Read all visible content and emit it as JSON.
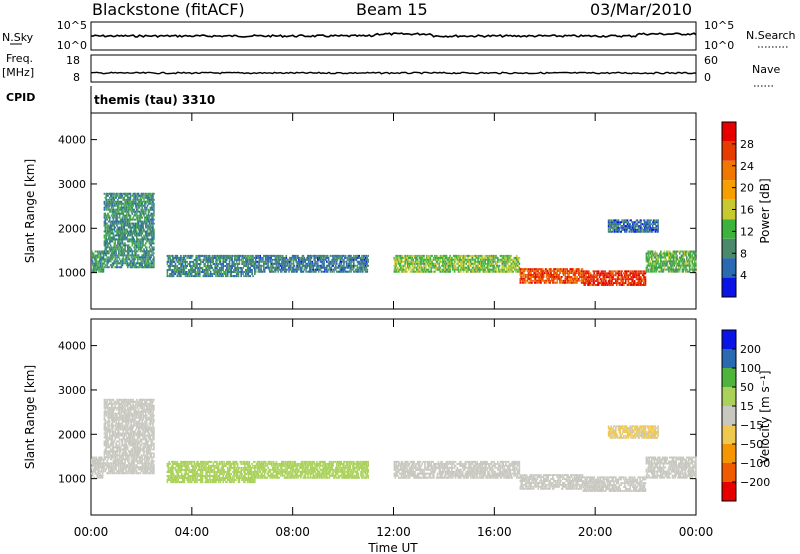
{
  "header": {
    "station": "Blackstone (fitACF)",
    "beam": "Beam 15",
    "date": "03/Mar/2010"
  },
  "strips": {
    "nsky_label": "N.Sky",
    "nsky_ticks": [
      "10^5",
      "10^0"
    ],
    "nsearch_label": "N.Search",
    "nsearch_ticks": [
      "10^5",
      "10^0"
    ],
    "freq_label": "Freq.",
    "freq_unit": "[MHz]",
    "freq_ticks": [
      "18",
      "8"
    ],
    "nave_label": "Nave",
    "nave_ticks": [
      "60",
      "0"
    ],
    "cpid_label": "CPID",
    "cpid_text": "themis (tau) 3310"
  },
  "x_axis": {
    "tick_labels": [
      "00:00",
      "04:00",
      "08:00",
      "12:00",
      "16:00",
      "20:00",
      "00:00"
    ],
    "title": "Time UT"
  },
  "colors": {
    "power": [
      "#0a14e6",
      "#2a6ab0",
      "#4a8a6a",
      "#3cb43c",
      "#c8c832",
      "#f5a000",
      "#f07800",
      "#e63c00",
      "#e60000"
    ],
    "velocity": [
      "#e60000",
      "#f05a00",
      "#f59600",
      "#f0c850",
      "#c8c8c0",
      "#aad25a",
      "#50b43c",
      "#2a6ab0",
      "#0a14e6"
    ],
    "trace": "#000000"
  },
  "chart_data": [
    {
      "type": "heatmap",
      "panel": "power",
      "ylabel": "Slant Range [km]",
      "y_ticks": [
        "4000",
        "3000",
        "2000",
        "1000"
      ],
      "ylim": [
        180,
        4600
      ],
      "xlim_hours": [
        0,
        24
      ],
      "colorbar": {
        "label": "Power [dB]",
        "tick_labels": [
          "28",
          "24",
          "20",
          "16",
          "12",
          "8",
          "4"
        ],
        "range": [
          0,
          32
        ]
      },
      "echo_regions": [
        {
          "t0": 0.0,
          "t1": 0.5,
          "r0": 1000,
          "r1": 1500,
          "level": 10
        },
        {
          "t0": 0.5,
          "t1": 2.5,
          "r0": 1100,
          "r1": 2800,
          "level": 9
        },
        {
          "t0": 3.0,
          "t1": 6.5,
          "r0": 900,
          "r1": 1400,
          "level": 8
        },
        {
          "t0": 6.5,
          "t1": 11.0,
          "r0": 1000,
          "r1": 1400,
          "level": 7
        },
        {
          "t0": 12.0,
          "t1": 17.0,
          "r0": 1000,
          "r1": 1400,
          "level": 14
        },
        {
          "t0": 17.0,
          "t1": 19.5,
          "r0": 750,
          "r1": 1100,
          "level": 26
        },
        {
          "t0": 19.5,
          "t1": 22.0,
          "r0": 700,
          "r1": 1050,
          "level": 28
        },
        {
          "t0": 22.0,
          "t1": 24.0,
          "r0": 1000,
          "r1": 1500,
          "level": 12
        },
        {
          "t0": 20.5,
          "t1": 22.5,
          "r0": 1900,
          "r1": 2200,
          "level": 6
        }
      ]
    },
    {
      "type": "heatmap",
      "panel": "velocity",
      "ylabel": "Slant Range [km]",
      "y_ticks": [
        "4000",
        "3000",
        "2000",
        "1000"
      ],
      "ylim": [
        180,
        4600
      ],
      "xlim_hours": [
        0,
        24
      ],
      "colorbar": {
        "label": "Velocity [m s⁻¹]",
        "tick_labels": [
          "200",
          "100",
          "50",
          "15",
          "−15",
          "−50",
          "−100",
          "−200"
        ]
      },
      "echo_regions": [
        {
          "t0": 0.0,
          "t1": 0.5,
          "r0": 1000,
          "r1": 1500,
          "velocity": 0
        },
        {
          "t0": 0.5,
          "t1": 2.5,
          "r0": 1100,
          "r1": 2800,
          "velocity": 5
        },
        {
          "t0": 3.0,
          "t1": 6.5,
          "r0": 900,
          "r1": 1400,
          "velocity": 40
        },
        {
          "t0": 6.5,
          "t1": 11.0,
          "r0": 1000,
          "r1": 1400,
          "velocity": 30
        },
        {
          "t0": 12.0,
          "t1": 17.0,
          "r0": 1000,
          "r1": 1400,
          "velocity": 0
        },
        {
          "t0": 17.0,
          "t1": 19.5,
          "r0": 750,
          "r1": 1100,
          "velocity": 0
        },
        {
          "t0": 19.5,
          "t1": 22.0,
          "r0": 700,
          "r1": 1050,
          "velocity": 0
        },
        {
          "t0": 22.0,
          "t1": 24.0,
          "r0": 1000,
          "r1": 1500,
          "velocity": 0
        },
        {
          "t0": 20.5,
          "t1": 22.5,
          "r0": 1900,
          "r1": 2200,
          "velocity": -20
        }
      ]
    }
  ]
}
